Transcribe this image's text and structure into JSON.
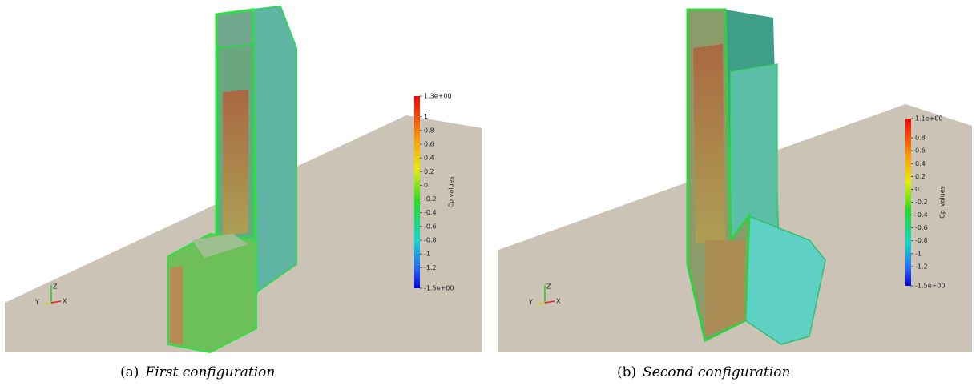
{
  "panels": [
    {
      "label": "(a)",
      "caption": "First configuration",
      "colorbar": {
        "title": "Cp values",
        "range": [
          -1.5,
          1.3
        ],
        "ticks": [
          {
            "value": 1.3,
            "label": "1.3e+00"
          },
          1,
          0.8,
          0.6,
          0.4,
          0.2,
          0,
          -0.2,
          -0.4,
          -0.6,
          -0.8,
          -1,
          -1.2,
          {
            "value": -1.5,
            "label": "-1.5e+00"
          }
        ]
      },
      "axes": {
        "z": "Z",
        "y": "Y",
        "x": "X"
      }
    },
    {
      "label": "(b)",
      "caption": "Second configuration",
      "colorbar": {
        "title": "Cp_values",
        "range": [
          -1.5,
          1.1
        ],
        "ticks": [
          {
            "value": 1.1,
            "label": "1.1e+00"
          },
          0.8,
          0.6,
          0.4,
          0.2,
          0,
          -0.2,
          -0.4,
          -0.6,
          -0.8,
          -1,
          -1.2,
          {
            "value": -1.5,
            "label": "-1.5e+00"
          }
        ]
      },
      "axes": {
        "z": "Z",
        "y": "Y",
        "x": "X"
      }
    }
  ]
}
